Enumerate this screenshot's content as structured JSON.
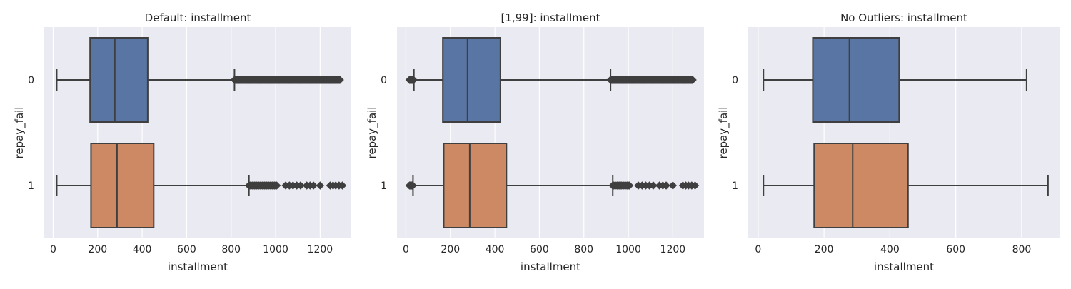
{
  "colors": {
    "background": "#eaeaf2",
    "grid": "#ffffff",
    "line": "#3f3f3f",
    "series_0": "#5875a4",
    "series_1": "#cc8963"
  },
  "chart_data": [
    {
      "type": "boxplot",
      "title": "Default: installment",
      "xlabel": "installment",
      "ylabel": "repay_fail",
      "orientation": "horizontal",
      "xlim": [
        -40,
        1340
      ],
      "xticks": [
        0,
        200,
        400,
        600,
        800,
        1000,
        1200
      ],
      "grid": true,
      "categories": [
        "0",
        "1"
      ],
      "boxes": [
        {
          "category": "0",
          "whisker_low": 16,
          "q1": 166,
          "median": 277,
          "q3": 425,
          "whisker_high": 815,
          "outlier_range": [
            815,
            1290
          ],
          "outlier_style": "dense"
        },
        {
          "category": "1",
          "whisker_low": 16,
          "q1": 170,
          "median": 287,
          "q3": 452,
          "whisker_high": 880,
          "outlier_range": [
            880,
            1005
          ],
          "outliers": [
            1045,
            1062,
            1078,
            1095,
            1112,
            1140,
            1155,
            1170,
            1200,
            1245,
            1258,
            1270,
            1285,
            1300
          ],
          "outlier_style": "sparse"
        }
      ]
    },
    {
      "type": "boxplot",
      "title": "[1,99]: installment",
      "xlabel": "installment",
      "ylabel": "repay_fail",
      "orientation": "horizontal",
      "xlim": [
        -40,
        1340
      ],
      "xticks": [
        0,
        200,
        400,
        600,
        800,
        1000,
        1200
      ],
      "grid": true,
      "categories": [
        "0",
        "1"
      ],
      "boxes": [
        {
          "category": "0",
          "whisker_low": 36,
          "q1": 166,
          "median": 277,
          "q3": 425,
          "whisker_high": 920,
          "low_outlier_range": [
            16,
            36
          ],
          "outlier_range": [
            920,
            1290
          ],
          "outlier_style": "dense"
        },
        {
          "category": "1",
          "whisker_low": 32,
          "q1": 170,
          "median": 287,
          "q3": 452,
          "whisker_high": 930,
          "low_outlier_range": [
            16,
            32
          ],
          "outlier_range": [
            930,
            1005
          ],
          "outliers": [
            1045,
            1062,
            1078,
            1095,
            1112,
            1140,
            1155,
            1170,
            1200,
            1245,
            1258,
            1270,
            1285,
            1300
          ],
          "outlier_style": "sparse"
        }
      ]
    },
    {
      "type": "boxplot",
      "title": "No Outliers: installment",
      "xlabel": "installment",
      "ylabel": "repay_fail",
      "orientation": "horizontal",
      "xlim": [
        -30,
        915
      ],
      "xticks": [
        0,
        200,
        400,
        600,
        800
      ],
      "grid": true,
      "categories": [
        "0",
        "1"
      ],
      "boxes": [
        {
          "category": "0",
          "whisker_low": 16,
          "q1": 166,
          "median": 277,
          "q3": 428,
          "whisker_high": 815,
          "outlier_style": "none"
        },
        {
          "category": "1",
          "whisker_low": 16,
          "q1": 170,
          "median": 287,
          "q3": 455,
          "whisker_high": 880,
          "outlier_style": "none"
        }
      ]
    }
  ]
}
